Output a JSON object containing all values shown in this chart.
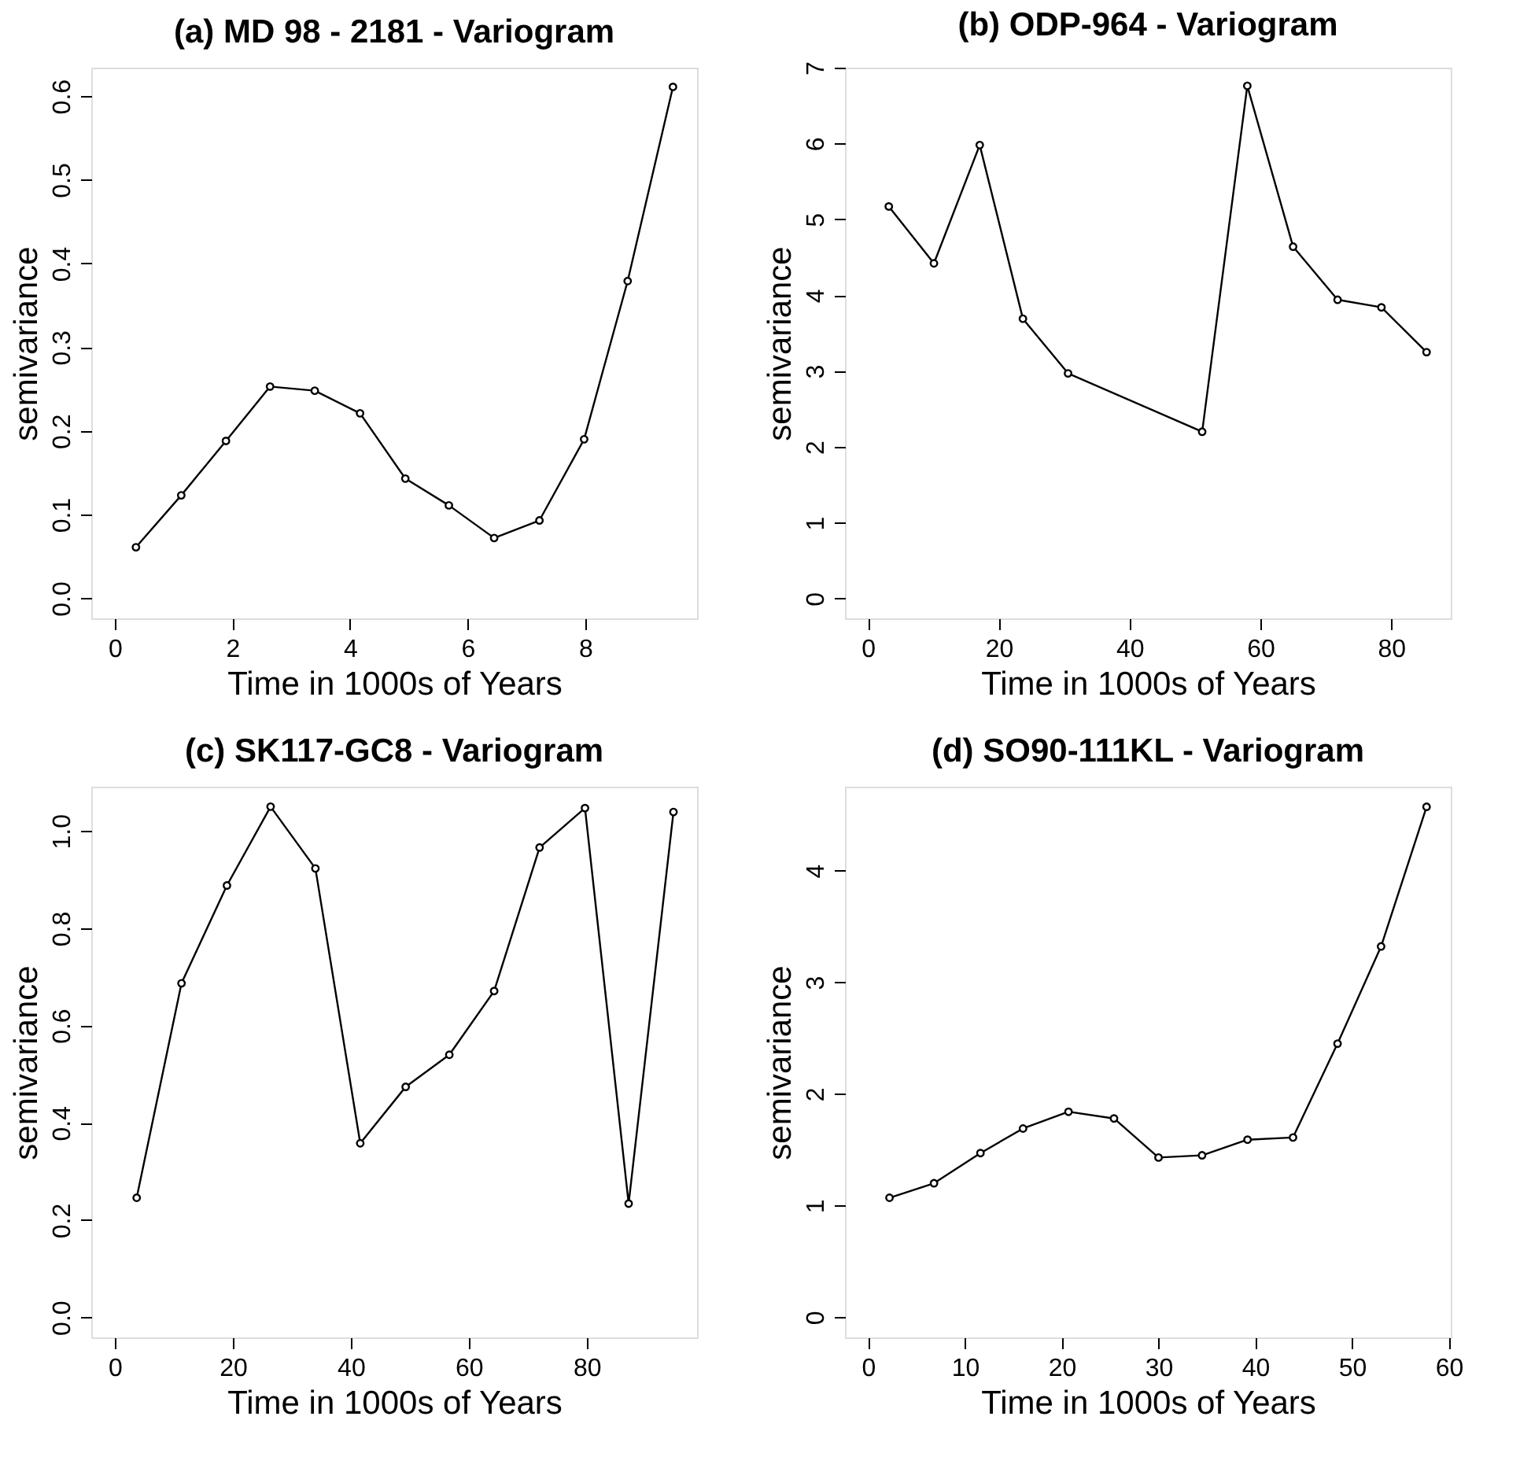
{
  "chart_data": [
    {
      "type": "line",
      "title": "(a)   MD 98 - 2181  - Variogram",
      "xlabel": "Time in 1000s of Years",
      "ylabel": "semivariance",
      "marker": "circle",
      "line_style": "solid",
      "grid": false,
      "color": "#000000",
      "x": [
        0.36,
        1.13,
        1.89,
        2.64,
        3.4,
        4.17,
        4.94,
        5.68,
        6.45,
        7.22,
        7.98,
        8.72,
        9.49
      ],
      "values": [
        0.061,
        0.123,
        0.188,
        0.253,
        0.248,
        0.221,
        0.143,
        0.111,
        0.072,
        0.093,
        0.19,
        0.379,
        0.611
      ],
      "xlim": [
        -0.4,
        9.9
      ],
      "ylim": [
        -0.024,
        0.634
      ],
      "xticks": [
        0,
        2,
        4,
        6,
        8
      ],
      "yticks": [
        {
          "value": 0,
          "label": "0.0"
        },
        0.1,
        0.2,
        0.3,
        0.4,
        0.5,
        0.6
      ]
    },
    {
      "type": "line",
      "title": "(b)   ODP-964  - Variogram",
      "xlabel": "Time in 1000s of Years",
      "ylabel": "semivariance",
      "marker": "circle",
      "line_style": "solid",
      "grid": false,
      "color": "#000000",
      "x": [
        3.2,
        10.1,
        17.1,
        23.7,
        30.6,
        51.1,
        58.0,
        65.0,
        71.8,
        78.5,
        85.4
      ],
      "values": [
        5.17,
        4.42,
        5.98,
        3.69,
        2.97,
        2.2,
        6.76,
        4.64,
        3.94,
        3.84,
        3.25
      ],
      "xlim": [
        -3.5,
        89.1
      ],
      "ylim": [
        -0.26,
        7.0
      ],
      "xticks": [
        0,
        20,
        40,
        60,
        80
      ],
      "yticks": [
        0,
        1,
        2,
        3,
        4,
        5,
        6,
        7
      ]
    },
    {
      "type": "line",
      "title": "(c)   SK117-GC8  - Variogram",
      "xlabel": "Time in 1000s of Years",
      "ylabel": "semivariance",
      "marker": "circle",
      "line_style": "solid",
      "grid": false,
      "color": "#000000",
      "x": [
        3.7,
        11.3,
        19.0,
        26.4,
        34.0,
        41.6,
        49.3,
        56.7,
        64.3,
        72.0,
        79.7,
        87.1,
        94.7
      ],
      "values": [
        0.246,
        0.687,
        0.888,
        1.05,
        0.923,
        0.358,
        0.474,
        0.54,
        0.671,
        0.966,
        1.047,
        0.234,
        1.039
      ],
      "xlim": [
        -4.0,
        98.7
      ],
      "ylim": [
        -0.041,
        1.091
      ],
      "xticks": [
        0,
        20,
        40,
        60,
        80
      ],
      "yticks": [
        {
          "value": 0,
          "label": "0.0"
        },
        0.2,
        0.4,
        0.6,
        0.8,
        {
          "value": 1,
          "label": "1.0"
        }
      ]
    },
    {
      "type": "line",
      "title": "(d)   SO90-111KL  - Variogram",
      "xlabel": "Time in 1000s of Years",
      "ylabel": "semivariance",
      "marker": "circle",
      "line_style": "solid",
      "grid": false,
      "color": "#000000",
      "x": [
        2.2,
        6.8,
        11.6,
        16.0,
        20.7,
        25.4,
        30.0,
        34.5,
        39.2,
        43.9,
        48.5,
        53.0,
        57.7
      ],
      "values": [
        1.07,
        1.2,
        1.47,
        1.69,
        1.84,
        1.78,
        1.43,
        1.45,
        1.59,
        1.61,
        2.45,
        3.32,
        4.57
      ],
      "xlim": [
        -2.4,
        60.2
      ],
      "ylim": [
        -0.18,
        4.75
      ],
      "xticks": [
        0,
        10,
        20,
        30,
        40,
        50,
        60
      ],
      "yticks": [
        {
          "value": 0,
          "label": "0"
        },
        {
          "value": 1,
          "label": "1"
        },
        {
          "value": 2,
          "label": "2"
        },
        {
          "value": 3,
          "label": "3"
        },
        {
          "value": 4,
          "label": "4"
        }
      ]
    }
  ]
}
